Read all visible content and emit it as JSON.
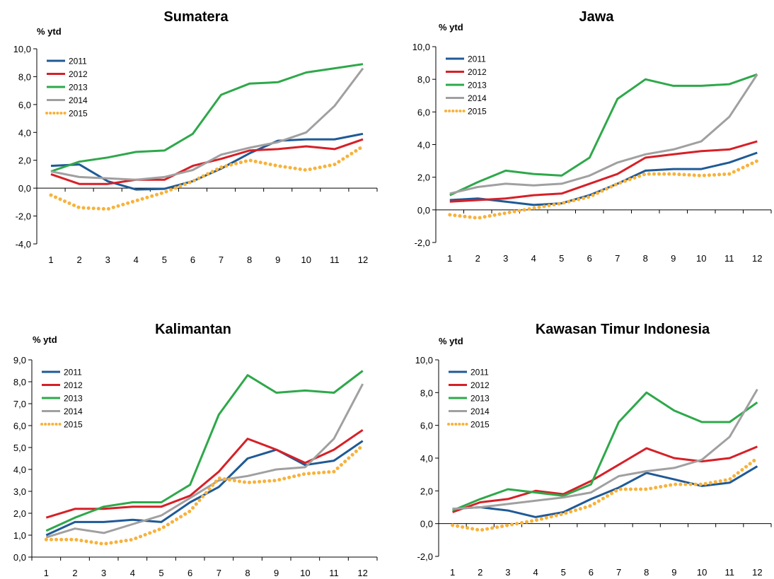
{
  "chart_data": [
    {
      "type": "line",
      "title": "Sumatera",
      "ylabel": "% ytd",
      "ylim": [
        -4.0,
        10.0
      ],
      "yticks": [
        "10,0",
        "8,0",
        "6,0",
        "4,0",
        "2,0",
        "0,0",
        "-2,0",
        "-4,0"
      ],
      "x": [
        "1",
        "2",
        "3",
        "4",
        "5",
        "6",
        "7",
        "8",
        "9",
        "10",
        "11",
        "12"
      ],
      "legend_position": "top-left",
      "series": [
        {
          "name": "2011",
          "color": "#1f5a96",
          "values": [
            1.6,
            1.7,
            0.5,
            -0.1,
            -0.05,
            0.5,
            1.4,
            2.5,
            3.4,
            3.5,
            3.5,
            3.9
          ]
        },
        {
          "name": "2012",
          "color": "#d62027",
          "values": [
            1.0,
            0.3,
            0.3,
            0.6,
            0.6,
            1.6,
            2.1,
            2.7,
            2.8,
            3.0,
            2.8,
            3.5
          ]
        },
        {
          "name": "2013",
          "color": "#2ea84a",
          "values": [
            1.2,
            1.9,
            2.2,
            2.6,
            2.7,
            3.9,
            6.7,
            7.5,
            7.6,
            8.3,
            8.6,
            8.9
          ]
        },
        {
          "name": "2014",
          "color": "#a0a0a0",
          "values": [
            1.2,
            0.8,
            0.7,
            0.6,
            0.8,
            1.3,
            2.4,
            2.9,
            3.3,
            4.0,
            5.9,
            8.6
          ]
        },
        {
          "name": "2015",
          "color": "#f7b23b",
          "dashed": true,
          "values": [
            -0.5,
            -1.4,
            -1.5,
            -0.9,
            -0.3,
            0.5,
            1.5,
            2.0,
            1.6,
            1.3,
            1.7,
            3.0
          ]
        }
      ]
    },
    {
      "type": "line",
      "title": "Jawa",
      "ylabel": "% ytd",
      "ylim": [
        -2.0,
        10.0
      ],
      "yticks": [
        "10,0",
        "8,0",
        "6,0",
        "4,0",
        "2,0",
        "0,0",
        "-2,0"
      ],
      "x": [
        "1",
        "2",
        "3",
        "4",
        "5",
        "6",
        "7",
        "8",
        "9",
        "10",
        "11",
        "12"
      ],
      "legend_position": "top-left",
      "series": [
        {
          "name": "2011",
          "color": "#1f5a96",
          "values": [
            0.6,
            0.7,
            0.5,
            0.3,
            0.4,
            0.9,
            1.6,
            2.4,
            2.5,
            2.5,
            2.9,
            3.5
          ]
        },
        {
          "name": "2012",
          "color": "#d62027",
          "values": [
            0.5,
            0.6,
            0.7,
            0.9,
            1.0,
            1.6,
            2.2,
            3.2,
            3.4,
            3.6,
            3.7,
            4.2
          ]
        },
        {
          "name": "2013",
          "color": "#2ea84a",
          "values": [
            0.9,
            1.7,
            2.4,
            2.2,
            2.1,
            3.2,
            6.8,
            8.0,
            7.6,
            7.6,
            7.7,
            8.3
          ]
        },
        {
          "name": "2014",
          "color": "#a0a0a0",
          "values": [
            1.0,
            1.4,
            1.6,
            1.5,
            1.6,
            2.1,
            2.9,
            3.4,
            3.7,
            4.2,
            5.7,
            8.3
          ]
        },
        {
          "name": "2015",
          "color": "#f7b23b",
          "dashed": true,
          "values": [
            -0.3,
            -0.5,
            -0.2,
            0.1,
            0.4,
            0.8,
            1.6,
            2.2,
            2.2,
            2.1,
            2.2,
            3.0
          ]
        }
      ]
    },
    {
      "type": "line",
      "title": "Kalimantan",
      "ylabel": "% ytd",
      "ylim": [
        0.0,
        9.0
      ],
      "yticks": [
        "9,0",
        "8,0",
        "7,0",
        "6,0",
        "5,0",
        "4,0",
        "3,0",
        "2,0",
        "1,0",
        "0,0"
      ],
      "x": [
        "1",
        "2",
        "3",
        "4",
        "5",
        "6",
        "7",
        "8",
        "9",
        "10",
        "11",
        "12"
      ],
      "legend_position": "top-left",
      "series": [
        {
          "name": "2011",
          "color": "#1f5a96",
          "values": [
            1.0,
            1.6,
            1.6,
            1.7,
            1.6,
            2.5,
            3.2,
            4.5,
            4.9,
            4.2,
            4.4,
            5.3
          ]
        },
        {
          "name": "2012",
          "color": "#d62027",
          "values": [
            1.8,
            2.2,
            2.2,
            2.3,
            2.3,
            2.8,
            3.9,
            5.4,
            4.9,
            4.3,
            4.9,
            5.8
          ]
        },
        {
          "name": "2013",
          "color": "#2ea84a",
          "values": [
            1.2,
            1.8,
            2.3,
            2.5,
            2.5,
            3.3,
            6.5,
            8.3,
            7.5,
            7.6,
            7.5,
            8.5
          ]
        },
        {
          "name": "2014",
          "color": "#a0a0a0",
          "values": [
            0.9,
            1.3,
            1.1,
            1.5,
            1.9,
            2.7,
            3.5,
            3.7,
            4.0,
            4.1,
            5.4,
            7.9
          ]
        },
        {
          "name": "2015",
          "color": "#f7b23b",
          "dashed": true,
          "values": [
            0.8,
            0.8,
            0.6,
            0.8,
            1.3,
            2.1,
            3.6,
            3.4,
            3.5,
            3.8,
            3.9,
            5.1
          ]
        }
      ]
    },
    {
      "type": "line",
      "title": "Kawasan Timur Indonesia",
      "ylabel": "% ytd",
      "ylim": [
        -2.0,
        10.0
      ],
      "yticks": [
        "10,0",
        "8,0",
        "6,0",
        "4,0",
        "2,0",
        "0,0",
        "-2,0"
      ],
      "x": [
        "1",
        "2",
        "3",
        "4",
        "5",
        "6",
        "7",
        "8",
        "9",
        "10",
        "11",
        "12"
      ],
      "legend_position": "top-left",
      "series": [
        {
          "name": "2011",
          "color": "#1f5a96",
          "values": [
            0.9,
            1.0,
            0.8,
            0.4,
            0.7,
            1.5,
            2.2,
            3.1,
            2.7,
            2.3,
            2.5,
            3.5
          ]
        },
        {
          "name": "2012",
          "color": "#d62027",
          "values": [
            0.7,
            1.3,
            1.5,
            2.0,
            1.8,
            2.6,
            3.6,
            4.6,
            4.0,
            3.8,
            4.0,
            4.7
          ]
        },
        {
          "name": "2013",
          "color": "#2ea84a",
          "values": [
            0.8,
            1.5,
            2.1,
            1.9,
            1.7,
            2.4,
            6.2,
            8.0,
            6.9,
            6.2,
            6.2,
            7.4
          ]
        },
        {
          "name": "2014",
          "color": "#a0a0a0",
          "values": [
            0.9,
            1.0,
            1.2,
            1.4,
            1.6,
            1.9,
            2.9,
            3.2,
            3.4,
            3.9,
            5.3,
            8.2
          ]
        },
        {
          "name": "2015",
          "color": "#f7b23b",
          "dashed": true,
          "values": [
            -0.1,
            -0.4,
            -0.1,
            0.2,
            0.6,
            1.1,
            2.1,
            2.1,
            2.4,
            2.4,
            2.7,
            4.0
          ]
        }
      ]
    }
  ]
}
